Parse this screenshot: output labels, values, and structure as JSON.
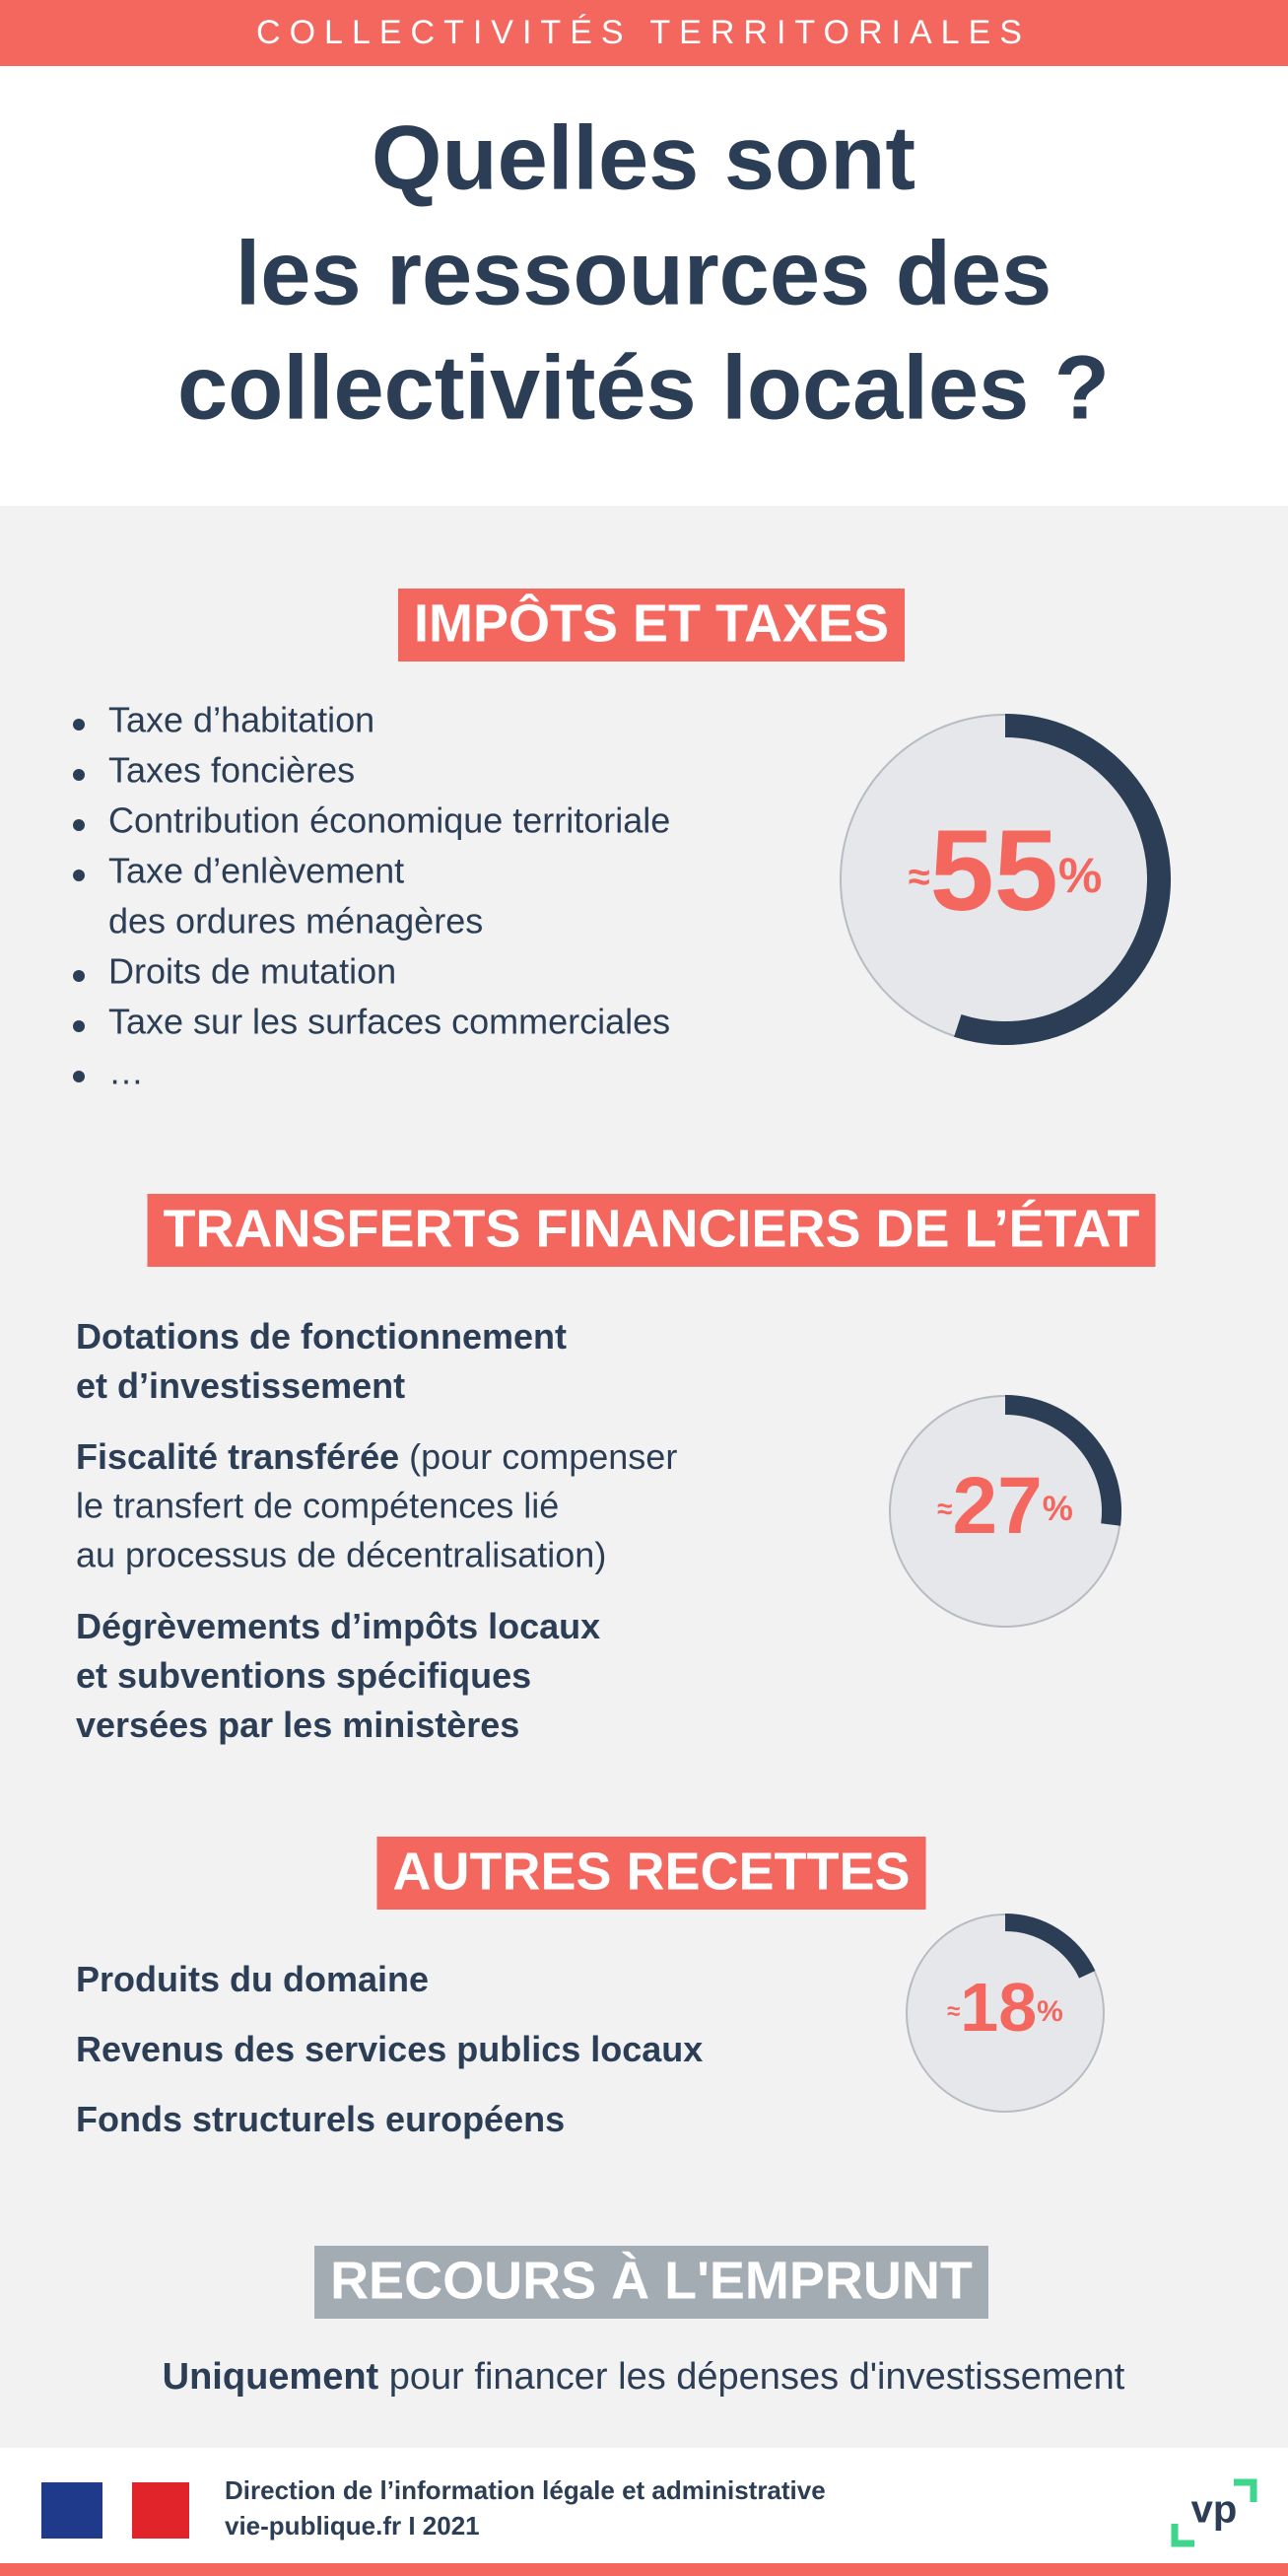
{
  "header": {
    "banner": "COLLECTIVITÉS TERRITORIALES",
    "title": [
      "Quelles sont",
      "les ressources des",
      "collectivités locales ?"
    ]
  },
  "sections": [
    {
      "title": "IMPÔTS ET TAXES",
      "bullets": true,
      "items": [
        {
          "lines": [
            "Taxe d’habitation"
          ]
        },
        {
          "lines": [
            "Taxes foncières"
          ]
        },
        {
          "lines": [
            "Contribution économique territoriale"
          ]
        },
        {
          "lines": [
            "Taxe d’enlèvement",
            "des ordures ménagères"
          ]
        },
        {
          "lines": [
            "Droits de mutation"
          ]
        },
        {
          "lines": [
            "Taxe sur les surfaces commerciales"
          ]
        },
        {
          "lines": [
            "…"
          ]
        }
      ],
      "share": {
        "approx": "≈",
        "value": 55,
        "unit": "%"
      }
    },
    {
      "title": "TRANSFERTS FINANCIERS DE L’ÉTAT",
      "bullets": false,
      "items": [
        {
          "lines": [
            [
              {
                "text": "Dotations de fonctionnement",
                "bold": true
              }
            ],
            [
              {
                "text": "et d’investissement",
                "bold": true
              }
            ]
          ]
        },
        {
          "lines": [
            [
              {
                "text": "Fiscalité transférée",
                "bold": true
              },
              {
                "text": " (pour compenser",
                "bold": false
              }
            ],
            "le transfert de compétences lié",
            "au processus de décentralisation)"
          ]
        },
        {
          "lines": [
            [
              {
                "text": "Dégrèvements d’impôts locaux",
                "bold": true
              }
            ],
            [
              {
                "text": "et subventions spécifiques",
                "bold": true
              }
            ],
            [
              {
                "text": "versées par les ministères",
                "bold": true
              }
            ]
          ]
        }
      ],
      "share": {
        "approx": "≈",
        "value": 27,
        "unit": "%"
      }
    },
    {
      "title": "AUTRES RECETTES",
      "bullets": false,
      "items": [
        {
          "lines": [
            [
              {
                "text": "Produits du domaine",
                "bold": true
              }
            ]
          ]
        },
        {
          "lines": [
            [
              {
                "text": "Revenus des services publics locaux",
                "bold": true
              }
            ]
          ]
        },
        {
          "lines": [
            [
              {
                "text": "Fonds structurels européens",
                "bold": true
              }
            ]
          ]
        }
      ],
      "share": {
        "approx": "≈",
        "value": 18,
        "unit": "%"
      }
    }
  ],
  "borrowing": {
    "title": "RECOURS À L'EMPRUNT",
    "text": [
      {
        "text": "Uniquement",
        "bold": true
      },
      {
        "text": " pour financer les dépenses d'investissement",
        "bold": false
      }
    ]
  },
  "footer": {
    "lines": [
      "Direction de l’information légale et administrative",
      "vie-publique.fr I 2021"
    ],
    "logo": "vp"
  }
}
